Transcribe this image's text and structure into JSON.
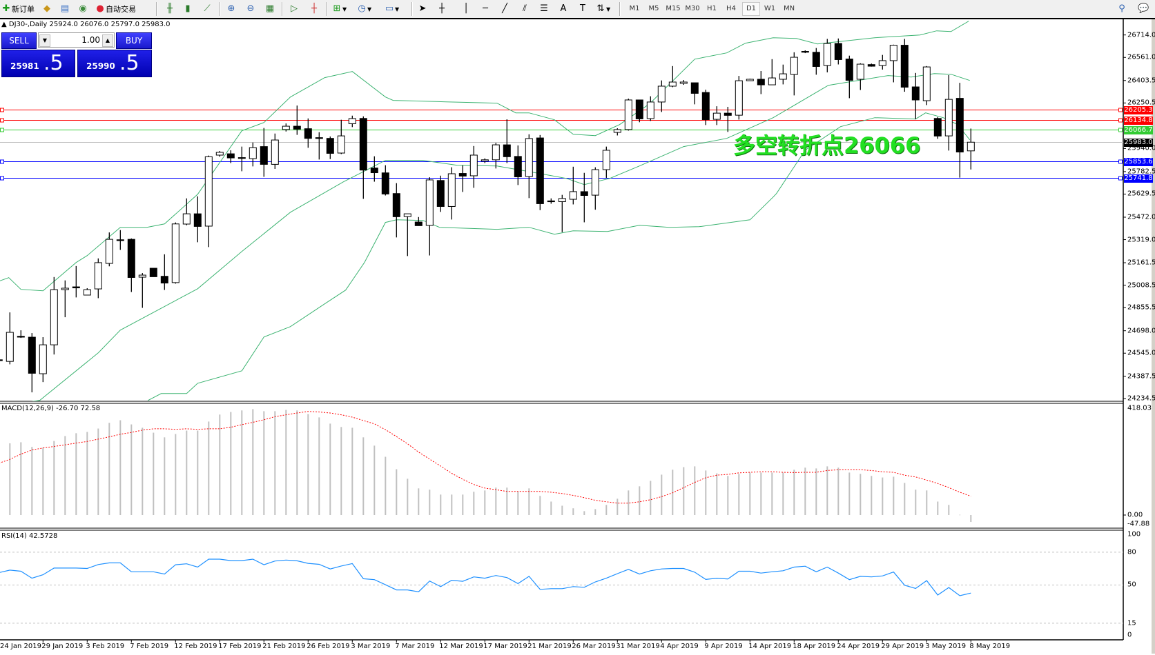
{
  "toolbar": {
    "new_order": "新订单",
    "auto_trading": "自动交易",
    "timeframes": [
      "M1",
      "M5",
      "M15",
      "M30",
      "H1",
      "H4",
      "D1",
      "W1",
      "MN"
    ],
    "active_timeframe": "D1"
  },
  "chart": {
    "header": "DJ30-,Daily  25924.0 26076.0 25797.0 25983.0",
    "one_click": {
      "sell_label": "SELL",
      "buy_label": "BUY",
      "lot": "1.00",
      "sell_price_main": "25981",
      "sell_price_pips": ".5",
      "buy_price_main": "25990",
      "buy_price_pips": ".5"
    },
    "annotation": "多空转折点26066",
    "annotation_color": "#22e022",
    "price_ticks": [
      "26714.0",
      "26561.0",
      "26403.5",
      "26250.5",
      "25940.0",
      "25782.5",
      "25629.5",
      "25472.0",
      "25319.0",
      "25161.5",
      "25008.5",
      "24855.5",
      "24698.0",
      "24545.0",
      "24387.5",
      "24234.5"
    ],
    "hlines": [
      {
        "price": "26205.3",
        "color": "#ff0000"
      },
      {
        "price": "26134.8",
        "color": "#ff0000"
      },
      {
        "price": "26066.7",
        "color": "#33cc33"
      },
      {
        "price": "25983.0",
        "color": "#000000",
        "line_color": "#c0c0c0",
        "current": true
      },
      {
        "price": "25853.6",
        "color": "#0000ff"
      },
      {
        "price": "25741.8",
        "color": "#0000ff"
      }
    ],
    "highlight_zone_price": 26066,
    "dates": [
      "24 Jan 2019",
      "29 Jan 2019",
      "3 Feb 2019",
      "7 Feb 2019",
      "12 Feb 2019",
      "17 Feb 2019",
      "21 Feb 2019",
      "26 Feb 2019",
      "3 Mar 2019",
      "7 Mar 2019",
      "12 Mar 2019",
      "17 Mar 2019",
      "21 Mar 2019",
      "26 Mar 2019",
      "31 Mar 2019",
      "4 Apr 2019",
      "9 Apr 2019",
      "14 Apr 2019",
      "18 Apr 2019",
      "24 Apr 2019",
      "29 Apr 2019",
      "3 May 2019",
      "8 May 2019"
    ],
    "macd": {
      "label": "MACD(12,26,9) -26.70 72.58",
      "ticks": [
        "418.03",
        "0.00",
        "-47.88"
      ]
    },
    "rsi": {
      "label": "RSI(14) 42.5728",
      "ticks": [
        "100",
        "80",
        "50",
        "15",
        "0"
      ],
      "levels": [
        80,
        50,
        15
      ]
    }
  },
  "chart_data": {
    "type": "candlestick",
    "symbol": "DJ30-",
    "timeframe": "Daily",
    "ohlc": [
      [
        24500,
        24510,
        24480,
        24494
      ],
      [
        24489,
        24823,
        24469,
        24687
      ],
      [
        24660,
        24701,
        24649,
        24655
      ],
      [
        24654,
        24682,
        24278,
        24408
      ],
      [
        24405,
        24654,
        24348,
        24602
      ],
      [
        24602,
        25064,
        24536,
        24978
      ],
      [
        24978,
        25041,
        24790,
        24988
      ],
      [
        24997,
        25139,
        24925,
        24990
      ],
      [
        24941,
        24988,
        24941,
        24978
      ],
      [
        24983,
        25191,
        24920,
        25162
      ],
      [
        25157,
        25368,
        25137,
        25321
      ],
      [
        25318,
        25384,
        25249,
        25316
      ],
      [
        25321,
        25327,
        24962,
        25061
      ],
      [
        25063,
        25091,
        24854,
        25077
      ],
      [
        25124,
        25124,
        25066,
        25066
      ],
      [
        25069,
        25219,
        24976,
        25023
      ],
      [
        25026,
        25436,
        25019,
        25426
      ],
      [
        25425,
        25600,
        25417,
        25495
      ],
      [
        25495,
        25614,
        25301,
        25409
      ],
      [
        25411,
        25892,
        25268,
        25884
      ],
      [
        25895,
        25923,
        25884,
        25914
      ],
      [
        25904,
        25928,
        25841,
        25876
      ],
      [
        25878,
        25953,
        25785,
        25876
      ],
      [
        25871,
        25981,
        25818,
        25946
      ],
      [
        25953,
        26080,
        25747,
        25832
      ],
      [
        25832,
        26042,
        25801,
        25998
      ],
      [
        26069,
        26111,
        26056,
        26092
      ],
      [
        26092,
        26233,
        26033,
        26072
      ],
      [
        26075,
        26145,
        25945,
        26009
      ],
      [
        26014,
        26051,
        25865,
        26012
      ],
      [
        26009,
        26022,
        25868,
        25907
      ],
      [
        25909,
        26136,
        25902,
        26026
      ],
      [
        26109,
        26164,
        26086,
        26144
      ],
      [
        26145,
        26159,
        25597,
        25793
      ],
      [
        25807,
        25887,
        25714,
        25775
      ],
      [
        25774,
        25826,
        25620,
        25630
      ],
      [
        25633,
        25704,
        25334,
        25475
      ],
      [
        25476,
        25495,
        25207,
        25495
      ],
      [
        25439,
        25473,
        25414,
        25414
      ],
      [
        25416,
        25744,
        25211,
        25726
      ],
      [
        25722,
        25755,
        25508,
        25545
      ],
      [
        25545,
        25812,
        25456,
        25768
      ],
      [
        25770,
        25826,
        25644,
        25752
      ],
      [
        25754,
        25957,
        25672,
        25895
      ],
      [
        25854,
        25873,
        25841,
        25863
      ],
      [
        25863,
        25979,
        25804,
        25965
      ],
      [
        25965,
        26139,
        25841,
        25884
      ],
      [
        25886,
        25961,
        25691,
        25747
      ],
      [
        25749,
        26037,
        25602,
        26008
      ],
      [
        26012,
        26032,
        25520,
        25564
      ],
      [
        25583,
        25600,
        25564,
        25581
      ],
      [
        25578,
        25624,
        25370,
        25599
      ],
      [
        25594,
        25816,
        25559,
        25646
      ],
      [
        25646,
        25774,
        25437,
        25620
      ],
      [
        25622,
        25812,
        25523,
        25796
      ],
      [
        25796,
        25953,
        25740,
        25928
      ],
      [
        26050,
        26078,
        26029,
        26069
      ],
      [
        26069,
        26280,
        26062,
        26271
      ],
      [
        26271,
        26271,
        26119,
        26142
      ],
      [
        26144,
        26296,
        26128,
        26257
      ],
      [
        26257,
        26404,
        26189,
        26365
      ],
      [
        26365,
        26502,
        26358,
        26393
      ],
      [
        26384,
        26407,
        26374,
        26393
      ],
      [
        26388,
        26388,
        26241,
        26316
      ],
      [
        26322,
        26341,
        26100,
        26137
      ],
      [
        26139,
        26228,
        26100,
        26181
      ],
      [
        26181,
        26224,
        26053,
        26166
      ],
      [
        26167,
        26435,
        26137,
        26402
      ],
      [
        26402,
        26416,
        26400,
        26412
      ],
      [
        26412,
        26468,
        26311,
        26374
      ],
      [
        26374,
        26549,
        26374,
        26421
      ],
      [
        26412,
        26512,
        26377,
        26449
      ],
      [
        26445,
        26596,
        26302,
        26562
      ],
      [
        26602,
        26609,
        26590,
        26600
      ],
      [
        26596,
        26625,
        26443,
        26499
      ],
      [
        26506,
        26687,
        26459,
        26656
      ],
      [
        26656,
        26690,
        26513,
        26546
      ],
      [
        26550,
        26573,
        26283,
        26405
      ],
      [
        26412,
        26521,
        26339,
        26515
      ],
      [
        26512,
        26519,
        26498,
        26501
      ],
      [
        26506,
        26578,
        26478,
        26539
      ],
      [
        26539,
        26648,
        26391,
        26644
      ],
      [
        26644,
        26687,
        26327,
        26358
      ],
      [
        26360,
        26455,
        26139,
        26271
      ],
      [
        26266,
        26502,
        26236,
        26496
      ],
      [
        26145,
        26154,
        26006,
        26025
      ],
      [
        26026,
        26440,
        25926,
        26275
      ],
      [
        26282,
        26388,
        25741.8,
        25916
      ],
      [
        25924,
        26076,
        25797,
        25983
      ]
    ],
    "bollinger": {
      "upper": [
        [
          0.1,
          25038
        ],
        [
          0.9,
          25060
        ],
        [
          2,
          24980
        ],
        [
          4,
          24970
        ],
        [
          7,
          25163
        ],
        [
          8,
          25210
        ],
        [
          11,
          25403
        ],
        [
          13.4,
          25403
        ],
        [
          15,
          25426
        ],
        [
          18,
          25628
        ],
        [
          22,
          26061
        ],
        [
          24,
          26117
        ],
        [
          26.4,
          26291
        ],
        [
          29.5,
          26423
        ],
        [
          32,
          26465
        ],
        [
          35,
          26291
        ],
        [
          35.7,
          26268
        ],
        [
          38.4,
          26263
        ],
        [
          40.5,
          26258
        ],
        [
          45.1,
          26249
        ],
        [
          46.8,
          26183
        ],
        [
          48,
          26183
        ],
        [
          50.3,
          26136
        ],
        [
          52,
          26037
        ],
        [
          54,
          26028
        ],
        [
          56.2,
          26103
        ],
        [
          58.9,
          26244
        ],
        [
          63,
          26549
        ],
        [
          65.9,
          26592
        ],
        [
          67.6,
          26658
        ],
        [
          70.1,
          26695
        ],
        [
          72.2,
          26690
        ],
        [
          74.1,
          26653
        ],
        [
          79.3,
          26695
        ],
        [
          83.4,
          26714
        ],
        [
          84.9,
          26742
        ],
        [
          86.2,
          26737
        ],
        [
          87.8,
          26808
        ]
      ],
      "middle": [
        [
          2.4,
          24209
        ],
        [
          3.7,
          24223
        ],
        [
          9,
          24547
        ],
        [
          11,
          24702
        ],
        [
          14.5,
          24843
        ],
        [
          18,
          24984
        ],
        [
          22,
          25238
        ],
        [
          26.4,
          25506
        ],
        [
          31.2,
          25713
        ],
        [
          35,
          25859
        ],
        [
          38.4,
          25859
        ],
        [
          41.5,
          25826
        ],
        [
          45.1,
          25821
        ],
        [
          47.6,
          25788
        ],
        [
          51.4,
          25736
        ],
        [
          53,
          25694
        ],
        [
          55.3,
          25736
        ],
        [
          58,
          25821
        ],
        [
          62,
          25953
        ],
        [
          65.9,
          26009
        ],
        [
          70.1,
          26150
        ],
        [
          75.1,
          26371
        ],
        [
          80.5,
          26437
        ],
        [
          82.6,
          26427
        ],
        [
          84.7,
          26451
        ],
        [
          86.2,
          26446
        ],
        [
          87.9,
          26404
        ]
      ],
      "lower": [
        [
          13.5,
          24223
        ],
        [
          14.7,
          24270
        ],
        [
          17,
          24270
        ],
        [
          18,
          24340
        ],
        [
          22,
          24425
        ],
        [
          24,
          24655
        ],
        [
          26.4,
          24726
        ],
        [
          29.5,
          24881
        ],
        [
          31.4,
          24975
        ],
        [
          33.1,
          25163
        ],
        [
          35,
          25436
        ],
        [
          36,
          25454
        ],
        [
          38.4,
          25450
        ],
        [
          39.9,
          25403
        ],
        [
          45.1,
          25389
        ],
        [
          48,
          25403
        ],
        [
          50.3,
          25356
        ],
        [
          52,
          25379
        ],
        [
          55.1,
          25374
        ],
        [
          58,
          25417
        ],
        [
          60.7,
          25403
        ],
        [
          63.4,
          25407
        ],
        [
          68,
          25454
        ],
        [
          70.1,
          25609
        ],
        [
          70.4,
          25633
        ],
        [
          73,
          25929
        ],
        [
          76.2,
          26089
        ],
        [
          79.3,
          26150
        ],
        [
          83,
          26141
        ],
        [
          83.9,
          26183
        ],
        [
          85.5,
          26150
        ],
        [
          86.8,
          26103
        ],
        [
          87.9,
          25999
        ]
      ]
    },
    "macd_histogram": [
      270,
      277,
      281,
      263,
      260,
      286,
      305,
      316,
      321,
      334,
      356,
      366,
      350,
      337,
      318,
      300,
      313,
      326,
      326,
      361,
      388,
      398,
      404,
      409,
      401,
      401,
      406,
      404,
      390,
      377,
      353,
      340,
      337,
      300,
      268,
      225,
      177,
      140,
      103,
      98,
      79,
      79,
      79,
      90,
      95,
      106,
      106,
      90,
      103,
      74,
      52,
      36,
      26,
      15,
      23,
      39,
      63,
      95,
      111,
      132,
      156,
      175,
      185,
      188,
      172,
      161,
      151,
      159,
      164,
      164,
      164,
      164,
      175,
      183,
      180,
      188,
      183,
      164,
      159,
      151,
      145,
      148,
      124,
      98,
      95,
      52,
      39,
      1,
      -26.7
    ],
    "macd_signal": [
      200,
      215,
      235,
      251,
      259,
      265,
      271,
      278,
      284,
      293,
      302,
      312,
      319,
      328,
      333,
      333,
      331,
      333,
      331,
      333,
      333,
      339,
      349,
      358,
      368,
      380,
      387,
      394,
      400,
      398,
      394,
      387,
      378,
      365,
      352,
      330,
      303,
      275,
      243,
      216,
      189,
      161,
      138,
      118,
      104,
      98,
      91,
      91,
      91,
      91,
      88,
      83,
      76,
      67,
      57,
      51,
      46,
      46,
      51,
      59,
      71,
      86,
      106,
      126,
      144,
      154,
      157,
      163,
      165,
      167,
      167,
      165,
      164,
      165,
      165,
      172,
      175,
      175,
      175,
      172,
      167,
      165,
      154,
      147,
      135,
      122,
      106,
      88,
      72.58
    ],
    "rsi": [
      61.5,
      63.6,
      62.6,
      56.2,
      59.4,
      65.5,
      65.5,
      65.5,
      65.1,
      68.7,
      70.2,
      70.2,
      62.1,
      62.1,
      62.1,
      60,
      68.5,
      69.4,
      66.4,
      73.6,
      73.6,
      72.3,
      72.3,
      73.6,
      68.5,
      71.9,
      72.8,
      72.1,
      69.8,
      68.9,
      64.7,
      67.4,
      69.6,
      55.7,
      54.9,
      50.2,
      45.5,
      45.5,
      43.8,
      53.6,
      48.5,
      54.3,
      53.4,
      57.4,
      56.2,
      58.7,
      56.8,
      51.3,
      57.9,
      46,
      46.6,
      46.6,
      48.5,
      47.9,
      52.8,
      56.2,
      60.4,
      64.3,
      60,
      63,
      64.7,
      65.1,
      65.1,
      61.7,
      55.1,
      56.2,
      55.5,
      62.6,
      62.6,
      60.9,
      62.1,
      63,
      66.4,
      67.2,
      62.1,
      66.4,
      60.9,
      54.9,
      57.9,
      57.4,
      58.3,
      61.9,
      49.8,
      46.8,
      54,
      40.8,
      47.7,
      40.2,
      42.57
    ],
    "colors": {
      "bands": "#3cb371",
      "macd_hist": "#c0c0c0",
      "macd_signal": "#ff0000",
      "rsi": "#1e90ff",
      "highlight": "#00ff00"
    }
  }
}
